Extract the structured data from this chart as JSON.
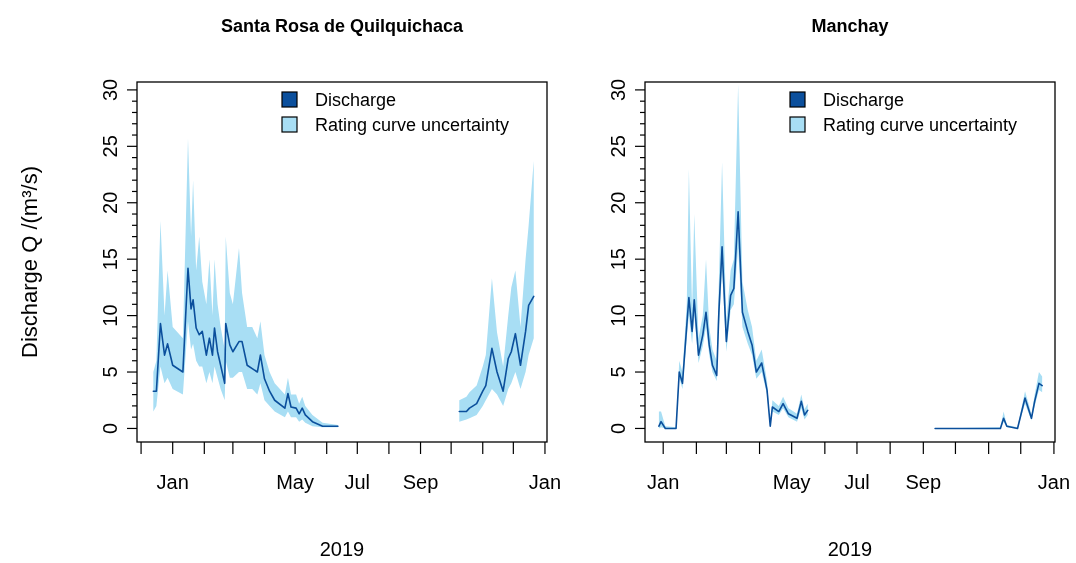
{
  "chart_data": [
    {
      "type": "line",
      "title": "Santa Rosa de Quilquichaca",
      "xlabel": "2019",
      "ylabel": "Discharge Q /(m³/s)",
      "legend": "top right",
      "xlim": [
        "2018-11-27",
        "2020-01-03"
      ],
      "ylim": [
        -1.2,
        30.7
      ],
      "xticks": [
        {
          "value": "2018-12-01",
          "label": null
        },
        {
          "value": "2019-01-01",
          "label": "Jan"
        },
        {
          "value": "2019-02-01",
          "label": null
        },
        {
          "value": "2019-03-01",
          "label": null
        },
        {
          "value": "2019-04-01",
          "label": null
        },
        {
          "value": "2019-05-01",
          "label": "May"
        },
        {
          "value": "2019-06-01",
          "label": null
        },
        {
          "value": "2019-07-01",
          "label": "Jul"
        },
        {
          "value": "2019-08-01",
          "label": null
        },
        {
          "value": "2019-09-01",
          "label": "Sep"
        },
        {
          "value": "2019-10-01",
          "label": null
        },
        {
          "value": "2019-11-01",
          "label": null
        },
        {
          "value": "2019-12-01",
          "label": null
        },
        {
          "value": "2020-01-01",
          "label": "Jan"
        }
      ],
      "yticks": [
        0,
        {
          "value": 1,
          "label": null
        },
        {
          "value": 2,
          "label": null
        },
        {
          "value": 3,
          "label": null
        },
        {
          "value": 4,
          "label": null
        },
        5,
        {
          "value": 6,
          "label": null
        },
        {
          "value": 7,
          "label": null
        },
        {
          "value": 8,
          "label": null
        },
        {
          "value": 9,
          "label": null
        },
        10,
        {
          "value": 11,
          "label": null
        },
        {
          "value": 12,
          "label": null
        },
        {
          "value": 13,
          "label": null
        },
        {
          "value": 14,
          "label": null
        },
        15,
        {
          "value": 16,
          "label": null
        },
        {
          "value": 17,
          "label": null
        },
        {
          "value": 18,
          "label": null
        },
        {
          "value": 19,
          "label": null
        },
        20,
        {
          "value": 21,
          "label": null
        },
        {
          "value": 22,
          "label": null
        },
        {
          "value": 23,
          "label": null
        },
        {
          "value": 24,
          "label": null
        },
        25,
        {
          "value": 26,
          "label": null
        },
        {
          "value": 27,
          "label": null
        },
        {
          "value": 28,
          "label": null
        },
        {
          "value": 29,
          "label": null
        },
        30
      ],
      "series": [
        {
          "name": "Discharge",
          "color": "#0b4f9c",
          "x": [
            "2018-12-13",
            "2018-12-16",
            "2018-12-20",
            "2018-12-24",
            "2018-12-27",
            "2019-01-01",
            "2019-01-11",
            "2019-01-16",
            "2019-01-19",
            "2019-01-21",
            "2019-01-24",
            "2019-01-27",
            "2019-01-30",
            "2019-02-03",
            "2019-02-06",
            "2019-02-09",
            "2019-02-11",
            "2019-02-14",
            "2019-02-17",
            "2019-02-21",
            "2019-02-22",
            "2019-02-26",
            "2019-03-01",
            "2019-03-07",
            "2019-03-10",
            "2019-03-15",
            "2019-03-20",
            "2019-03-25",
            "2019-03-28",
            "2019-04-01",
            "2019-04-06",
            "2019-04-11",
            "2019-04-21",
            "2019-04-24",
            "2019-04-27",
            "2019-05-02",
            "2019-05-05",
            "2019-05-08",
            "2019-05-11",
            "2019-05-18",
            "2019-05-28",
            "2019-06-12",
            "2019-08-01",
            "2019-10-09",
            "2019-10-16",
            "2019-10-19",
            "2019-10-26",
            "2019-11-01",
            "2019-11-04",
            "2019-11-10",
            "2019-11-15",
            "2019-11-21",
            "2019-11-26",
            "2019-11-29",
            "2019-12-03",
            "2019-12-08",
            "2019-12-13",
            "2019-12-16",
            "2019-12-21"
          ],
          "values": [
            3.3,
            3.3,
            9.3,
            6.5,
            7.5,
            5.6,
            5.0,
            14.2,
            10.6,
            11.4,
            8.9,
            8.3,
            8.6,
            6.5,
            8.0,
            6.5,
            8.9,
            6.8,
            5.6,
            4.0,
            9.3,
            7.4,
            6.8,
            7.7,
            7.7,
            5.6,
            5.3,
            5.0,
            6.5,
            4.4,
            3.3,
            2.5,
            1.8,
            3.1,
            1.9,
            1.8,
            1.3,
            1.8,
            1.2,
            0.6,
            0.2,
            0.2,
            null,
            1.5,
            1.5,
            1.8,
            2.2,
            3.3,
            3.8,
            7.1,
            5.0,
            3.3,
            6.2,
            6.8,
            8.4,
            5.6,
            8.6,
            10.9,
            11.7
          ],
          "lower": [
            1.5,
            2.0,
            5.5,
            4.0,
            4.5,
            3.5,
            3.0,
            9.5,
            7.0,
            7.5,
            6.0,
            5.5,
            5.5,
            4.0,
            5.0,
            4.0,
            5.5,
            4.5,
            3.5,
            2.5,
            6.0,
            4.5,
            4.5,
            5.0,
            5.0,
            3.5,
            3.5,
            3.0,
            4.0,
            2.5,
            2.0,
            1.5,
            1.0,
            1.5,
            1.0,
            1.0,
            0.6,
            0.8,
            0.5,
            0.2,
            0.1,
            0.1,
            null,
            0.6,
            0.8,
            0.9,
            1.2,
            2.0,
            2.5,
            3.5,
            3.0,
            2.0,
            3.5,
            4.0,
            5.0,
            3.5,
            5.0,
            6.5,
            8.0
          ],
          "upper": [
            5,
            6,
            18.4,
            10,
            14,
            9,
            8,
            25.7,
            17,
            22,
            14,
            17,
            13,
            11,
            15,
            10,
            15,
            11,
            9,
            7,
            17,
            12,
            11,
            16,
            12,
            9,
            9,
            8,
            9.5,
            6.5,
            5,
            4,
            3,
            4.5,
            3,
            3,
            2.2,
            2.8,
            2,
            1.2,
            0.5,
            0.3,
            null,
            2.5,
            2.8,
            3.2,
            3.8,
            5.5,
            6.5,
            13.3,
            8.5,
            5.5,
            10,
            12.5,
            14,
            9,
            15,
            18,
            23.7
          ]
        },
        {
          "name": "Rating curve uncertainty",
          "type": "area",
          "color": "#a8def4"
        }
      ]
    },
    {
      "type": "line",
      "title": "Manchay",
      "xlabel": "2019",
      "legend": "top right",
      "xlim": [
        "2018-12-15",
        "2020-01-02"
      ],
      "ylim": [
        -1.2,
        30.7
      ],
      "xticks": [
        {
          "value": "2019-01-01",
          "label": "Jan"
        },
        {
          "value": "2019-02-01",
          "label": null
        },
        {
          "value": "2019-03-01",
          "label": null
        },
        {
          "value": "2019-04-01",
          "label": null
        },
        {
          "value": "2019-05-01",
          "label": "May"
        },
        {
          "value": "2019-06-01",
          "label": null
        },
        {
          "value": "2019-07-01",
          "label": "Jul"
        },
        {
          "value": "2019-08-01",
          "label": null
        },
        {
          "value": "2019-09-01",
          "label": "Sep"
        },
        {
          "value": "2019-10-01",
          "label": null
        },
        {
          "value": "2019-11-01",
          "label": null
        },
        {
          "value": "2019-12-01",
          "label": null
        },
        {
          "value": "2020-01-01",
          "label": "Jan"
        }
      ],
      "yticks": [
        0,
        {
          "value": 1,
          "label": null
        },
        {
          "value": 2,
          "label": null
        },
        {
          "value": 3,
          "label": null
        },
        {
          "value": 4,
          "label": null
        },
        5,
        {
          "value": 6,
          "label": null
        },
        {
          "value": 7,
          "label": null
        },
        {
          "value": 8,
          "label": null
        },
        {
          "value": 9,
          "label": null
        },
        10,
        {
          "value": 11,
          "label": null
        },
        {
          "value": 12,
          "label": null
        },
        {
          "value": 13,
          "label": null
        },
        {
          "value": 14,
          "label": null
        },
        15,
        {
          "value": 16,
          "label": null
        },
        {
          "value": 17,
          "label": null
        },
        {
          "value": 18,
          "label": null
        },
        {
          "value": 19,
          "label": null
        },
        20,
        {
          "value": 21,
          "label": null
        },
        {
          "value": 22,
          "label": null
        },
        {
          "value": 23,
          "label": null
        },
        {
          "value": 24,
          "label": null
        },
        25,
        {
          "value": 26,
          "label": null
        },
        {
          "value": 27,
          "label": null
        },
        {
          "value": 28,
          "label": null
        },
        {
          "value": 29,
          "label": null
        },
        30
      ],
      "series": [
        {
          "name": "Discharge",
          "color": "#0b4f9c",
          "x": [
            "2018-12-28",
            "2018-12-30",
            "2019-01-03",
            "2019-01-13",
            "2019-01-16",
            "2019-01-19",
            "2019-01-23",
            "2019-01-25",
            "2019-01-28",
            "2019-01-30",
            "2019-02-03",
            "2019-02-07",
            "2019-02-10",
            "2019-02-13",
            "2019-02-16",
            "2019-02-20",
            "2019-02-22",
            "2019-02-25",
            "2019-03-01",
            "2019-03-05",
            "2019-03-08",
            "2019-03-12",
            "2019-03-16",
            "2019-03-21",
            "2019-03-25",
            "2019-03-29",
            "2019-04-03",
            "2019-04-08",
            "2019-04-11",
            "2019-04-13",
            "2019-04-19",
            "2019-04-23",
            "2019-04-28",
            "2019-05-06",
            "2019-05-10",
            "2019-05-13",
            "2019-05-16",
            "2019-07-15",
            "2019-09-12",
            "2019-11-12",
            "2019-11-15",
            "2019-11-18",
            "2019-11-28",
            "2019-12-05",
            "2019-12-09",
            "2019-12-11",
            "2019-12-14",
            "2019-12-18",
            "2019-12-21"
          ],
          "values": [
            0.2,
            0.6,
            0,
            0,
            5.0,
            4.0,
            9.1,
            11.6,
            8.6,
            11.4,
            6.5,
            8.3,
            10.3,
            7.4,
            5.6,
            4.7,
            10.3,
            16.1,
            7.7,
            11.8,
            12.4,
            19.2,
            10.3,
            8.6,
            7.4,
            5.0,
            5.8,
            3.4,
            0.2,
            1.9,
            1.5,
            2.2,
            1.3,
            0.9,
            2.4,
            1.2,
            1.6,
            null,
            0,
            0,
            0.9,
            0.2,
            0,
            2.7,
            1.5,
            0.9,
            2.4,
            4.0,
            3.8
          ],
          "lower": [
            0,
            0.1,
            0,
            0,
            4.5,
            3.5,
            8,
            10,
            7.5,
            10,
            5.8,
            7.3,
            9,
            6.5,
            5,
            4.2,
            9,
            14,
            6.8,
            10.5,
            11,
            16,
            9,
            7.5,
            6.5,
            4.4,
            5.0,
            3.0,
            0.1,
            1.5,
            1.2,
            1.8,
            1.0,
            0.6,
            1.8,
            0.8,
            1.2,
            null,
            0,
            0,
            0.6,
            0.1,
            0,
            2.2,
            1.2,
            0.7,
            2,
            3.4,
            3.2
          ],
          "upper": [
            1.5,
            1.5,
            0.2,
            0.1,
            6,
            5,
            11,
            23,
            10.5,
            19,
            8,
            10,
            15,
            9,
            7,
            6,
            13,
            23.6,
            9.5,
            14,
            15,
            30.5,
            13,
            10.5,
            9,
            6,
            7,
            4.2,
            0.3,
            2.5,
            2,
            2.8,
            1.8,
            1.3,
            3,
            1.7,
            2.2,
            null,
            0,
            0.1,
            1.5,
            0.3,
            0.1,
            3.3,
            2,
            1.2,
            3,
            5,
            4.6
          ]
        },
        {
          "name": "Rating curve uncertainty",
          "type": "area",
          "color": "#a8def4"
        }
      ]
    }
  ]
}
